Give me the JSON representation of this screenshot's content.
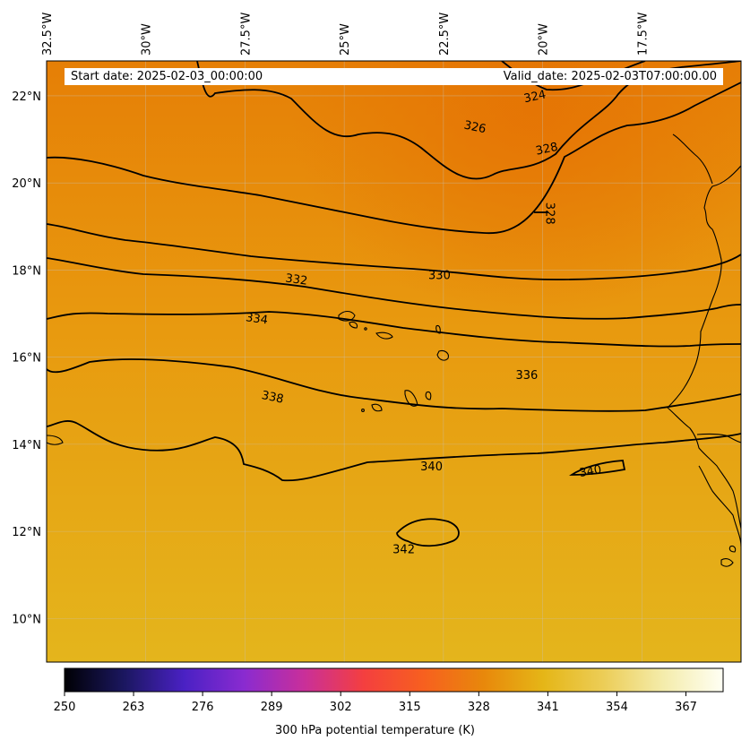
{
  "header": {
    "start_date": "Start date: 2025-02-03_00:00:00",
    "valid_date": "Valid_date: 2025-02-03T07:00:00.00"
  },
  "map": {
    "lon_range": [
      -32.5,
      -15.0
    ],
    "lat_range": [
      9.0,
      22.8
    ],
    "lon_ticks": [
      {
        "value": -32.5,
        "label": "32.5°W"
      },
      {
        "value": -30.0,
        "label": "30°W"
      },
      {
        "value": -27.5,
        "label": "27.5°W"
      },
      {
        "value": -25.0,
        "label": "25°W"
      },
      {
        "value": -22.5,
        "label": "22.5°W"
      },
      {
        "value": -20.0,
        "label": "20°W"
      },
      {
        "value": -17.5,
        "label": "17.5°W"
      }
    ],
    "lat_ticks": [
      {
        "value": 22,
        "label": "22°N"
      },
      {
        "value": 20,
        "label": "20°N"
      },
      {
        "value": 18,
        "label": "18°N"
      },
      {
        "value": 16,
        "label": "16°N"
      },
      {
        "value": 14,
        "label": "14°N"
      },
      {
        "value": 12,
        "label": "12°N"
      },
      {
        "value": 10,
        "label": "10°N"
      }
    ],
    "gridlines": true,
    "field_colors": {
      "north": "#e67f06",
      "mid": "#e89a0f",
      "south": "#e4b51c"
    },
    "contour_labels": [
      {
        "text": "324",
        "lon": -20.2,
        "lat": 22.0,
        "rotate": -12
      },
      {
        "text": "326",
        "lon": -21.7,
        "lat": 21.3,
        "rotate": 12
      },
      {
        "text": "328",
        "lon": -19.9,
        "lat": 20.8,
        "rotate": -12
      },
      {
        "text": "328",
        "lon": -19.8,
        "lat": 19.3,
        "rotate": 90
      },
      {
        "text": "330",
        "lon": -22.6,
        "lat": 17.9,
        "rotate": 0
      },
      {
        "text": "332",
        "lon": -26.2,
        "lat": 17.8,
        "rotate": 8
      },
      {
        "text": "334",
        "lon": -27.2,
        "lat": 16.9,
        "rotate": 8
      },
      {
        "text": "336",
        "lon": -20.4,
        "lat": 15.6,
        "rotate": 0
      },
      {
        "text": "338",
        "lon": -26.8,
        "lat": 15.1,
        "rotate": 12
      },
      {
        "text": "340",
        "lon": -22.8,
        "lat": 13.5,
        "rotate": 0
      },
      {
        "text": "340",
        "lon": -18.8,
        "lat": 13.4,
        "rotate": -10
      },
      {
        "text": "342",
        "lon": -23.5,
        "lat": 11.6,
        "rotate": 0
      }
    ]
  },
  "colorbar": {
    "label": "300 hPa potential temperature (K)",
    "range": [
      250,
      374
    ],
    "ticks": [
      {
        "value": 250,
        "label": "250"
      },
      {
        "value": 263,
        "label": "263"
      },
      {
        "value": 276,
        "label": "276"
      },
      {
        "value": 289,
        "label": "289"
      },
      {
        "value": 302,
        "label": "302"
      },
      {
        "value": 315,
        "label": "315"
      },
      {
        "value": 328,
        "label": "328"
      },
      {
        "value": 341,
        "label": "341"
      },
      {
        "value": 354,
        "label": "354"
      },
      {
        "value": 367,
        "label": "367"
      }
    ],
    "colormap": [
      "#000004",
      "#1b1760",
      "#4a21c4",
      "#8a2bd0",
      "#c92f9a",
      "#f43f3f",
      "#f7601f",
      "#e8880b",
      "#e5b617",
      "#eccd57",
      "#f4ecab",
      "#fffff4"
    ]
  }
}
